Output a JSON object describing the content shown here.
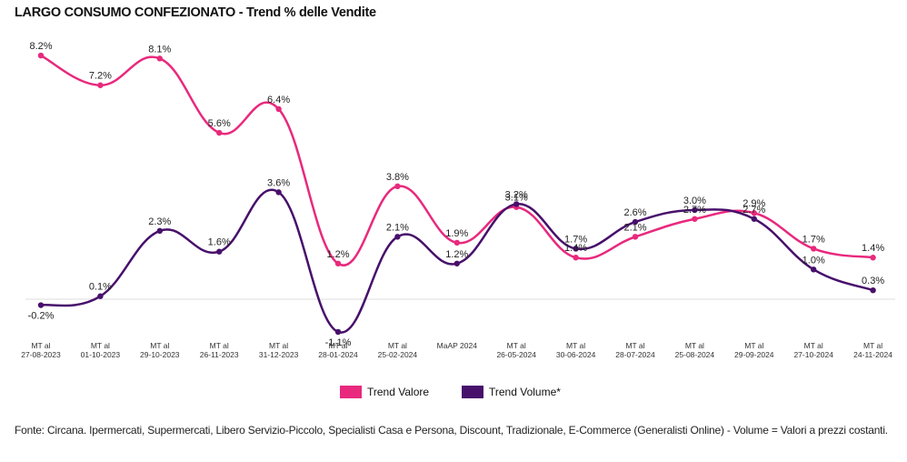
{
  "title": "LARGO CONSUMO CONFEZIONATO - Trend % delle Vendite",
  "source_note": "Fonte: Circana. Ipermercati, Supermercati, Libero Servizio-Piccolo, Specialisti Casa e Persona, Discount, Tradizionale, E-Commerce (Generalisti Online) - Volume = Valori a prezzi costanti.",
  "colors": {
    "trend_valore": "#e8297d",
    "trend_volume": "#47106b",
    "zero_line": "#dddddd"
  },
  "chart_data": {
    "type": "line",
    "title": "LARGO CONSUMO CONFEZIONATO - Trend % delle Vendite",
    "ylim": [
      -1.5,
      8.6
    ],
    "legend_position": "bottom-center",
    "grid": false,
    "categories": [
      [
        "MT al",
        "27-08-2023"
      ],
      [
        "MT al",
        "01-10-2023"
      ],
      [
        "MT al",
        "29-10-2023"
      ],
      [
        "MT al",
        "26-11-2023"
      ],
      [
        "MT al",
        "31-12-2023"
      ],
      [
        "MT al",
        "28-01-2024"
      ],
      [
        "MT al",
        "25-02-2024"
      ],
      [
        "MaAP 2024"
      ],
      [
        "MT al",
        "26-05-2024"
      ],
      [
        "MT al",
        "30-06-2024"
      ],
      [
        "MT al",
        "28-07-2024"
      ],
      [
        "MT al",
        "25-08-2024"
      ],
      [
        "MT al",
        "29-09-2024"
      ],
      [
        "MT al",
        "27-10-2024"
      ],
      [
        "MT al",
        "24-11-2024"
      ]
    ],
    "series": [
      {
        "name": "Trend Valore",
        "values": [
          8.2,
          7.2,
          8.1,
          5.6,
          6.4,
          1.2,
          3.8,
          1.9,
          3.1,
          1.4,
          2.1,
          2.7,
          2.9,
          1.7,
          1.4
        ],
        "labels": [
          "8.2%",
          "7.2%",
          "8.1%",
          "5.6%",
          "6.4%",
          "1.2%",
          "3.8%",
          "1.9%",
          "3.1%",
          "1.4%",
          "2.1%",
          "2.7%",
          "2.9%",
          "1.7%",
          "1.4%"
        ]
      },
      {
        "name": "Trend Volume*",
        "values": [
          -0.2,
          0.1,
          2.3,
          1.6,
          3.6,
          -1.1,
          2.1,
          1.2,
          3.2,
          1.7,
          2.6,
          3.0,
          2.7,
          1.0,
          0.3
        ],
        "labels": [
          "-0.2%",
          "0.1%",
          "2.3%",
          "1.6%",
          "3.6%",
          "-1.1%",
          "2.1%",
          "1.2%",
          "3.2%",
          "1.7%",
          "2.6%",
          "3.0%",
          "2.7%",
          "1.0%",
          "0.3%"
        ]
      }
    ]
  }
}
